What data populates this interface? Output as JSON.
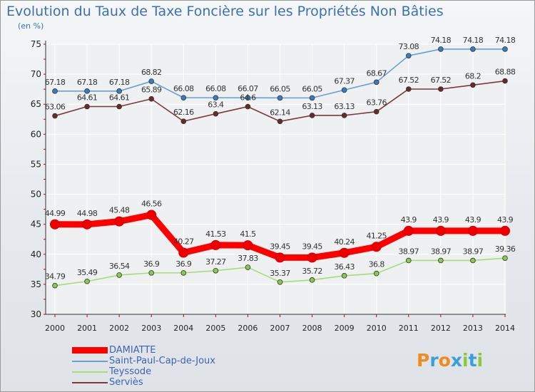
{
  "chart_data": {
    "type": "line",
    "title": "Evolution du Taux de Taxe Foncière sur les Propriétés Non Bâties",
    "subtitle": "(en %)",
    "xlabel": "",
    "ylabel": "(en %)",
    "ylim": [
      30,
      75
    ],
    "yticks": [
      30,
      35,
      40,
      45,
      50,
      55,
      60,
      65,
      70,
      75
    ],
    "grid": true,
    "categories": [
      "2000",
      "2001",
      "2002",
      "2003",
      "2004",
      "2005",
      "2006",
      "2007",
      "2008",
      "2009",
      "2010",
      "2011",
      "2012",
      "2013",
      "2014"
    ],
    "series": [
      {
        "name": "Saint-Paul-Cap-de-Joux",
        "color": "#6a9fd4",
        "marker": "#3a7cc4",
        "thick": false,
        "values": [
          67.18,
          67.18,
          67.18,
          68.82,
          66.08,
          66.08,
          66.07,
          66.05,
          66.05,
          67.37,
          68.67,
          73.08,
          74.18,
          74.18,
          74.18
        ],
        "labels": [
          "67.18",
          "67.18",
          "67.18",
          "68.82",
          "66.08",
          "66.08",
          "66.07",
          "66.05",
          "66.05",
          "67.37",
          "68.67",
          "73.08",
          "74.18",
          "74.18",
          "74.18"
        ]
      },
      {
        "name": "Serviès",
        "color": "#7a3a3a",
        "marker": "#6a2a2a",
        "thick": false,
        "values": [
          63.06,
          64.61,
          64.61,
          65.89,
          62.16,
          63.4,
          64.6,
          62.14,
          63.13,
          63.13,
          63.76,
          67.52,
          67.52,
          68.2,
          68.88
        ],
        "labels": [
          "63.06",
          "64.61",
          "64.61",
          "65.89",
          "62.16",
          "63.4",
          "64.6",
          "62.14",
          "63.13",
          "63.13",
          "63.76",
          "67.52",
          "67.52",
          "68.2",
          "68.88"
        ]
      },
      {
        "name": "DAMIATTE",
        "color": "#ff0000",
        "marker": "#ee0000",
        "thick": true,
        "values": [
          44.99,
          44.98,
          45.48,
          46.56,
          40.27,
          41.53,
          41.5,
          39.45,
          39.45,
          40.24,
          41.25,
          43.9,
          43.9,
          43.9,
          43.9
        ],
        "labels": [
          "44.99",
          "44.98",
          "45.48",
          "46.56",
          "40.27",
          "41.53",
          "41.5",
          "39.45",
          "39.45",
          "40.24",
          "41.25",
          "43.9",
          "43.9",
          "43.9",
          "43.9"
        ]
      },
      {
        "name": "Teyssode",
        "color": "#a8dc78",
        "marker": "#8cc850",
        "thick": false,
        "values": [
          34.79,
          35.49,
          36.54,
          36.9,
          36.9,
          37.27,
          37.83,
          35.37,
          35.72,
          36.43,
          36.8,
          38.97,
          38.97,
          38.97,
          39.36
        ],
        "labels": [
          "34.79",
          "35.49",
          "36.54",
          "36.9",
          "36.9",
          "37.27",
          "37.83",
          "35.37",
          "35.72",
          "36.43",
          "36.8",
          "38.97",
          "38.97",
          "38.97",
          "39.36"
        ]
      }
    ]
  },
  "legend": {
    "items": [
      {
        "label": "DAMIATTE",
        "color": "#ff0000",
        "thick": true
      },
      {
        "label": "Saint-Paul-Cap-de-Joux",
        "color": "#6a9fd4",
        "thick": false
      },
      {
        "label": "Teyssode",
        "color": "#a8dc78",
        "thick": false
      },
      {
        "label": "Serviès",
        "color": "#7a3a3a",
        "thick": false
      }
    ]
  },
  "logo": {
    "letters": [
      "P",
      "r",
      "o",
      "x",
      "i",
      "t",
      "i"
    ],
    "colors": [
      "#f08c1e",
      "#3aa0dc",
      "#f08c1e",
      "#3aa0dc",
      "#8cc83c",
      "#3aa0dc",
      "#8cc83c"
    ]
  }
}
